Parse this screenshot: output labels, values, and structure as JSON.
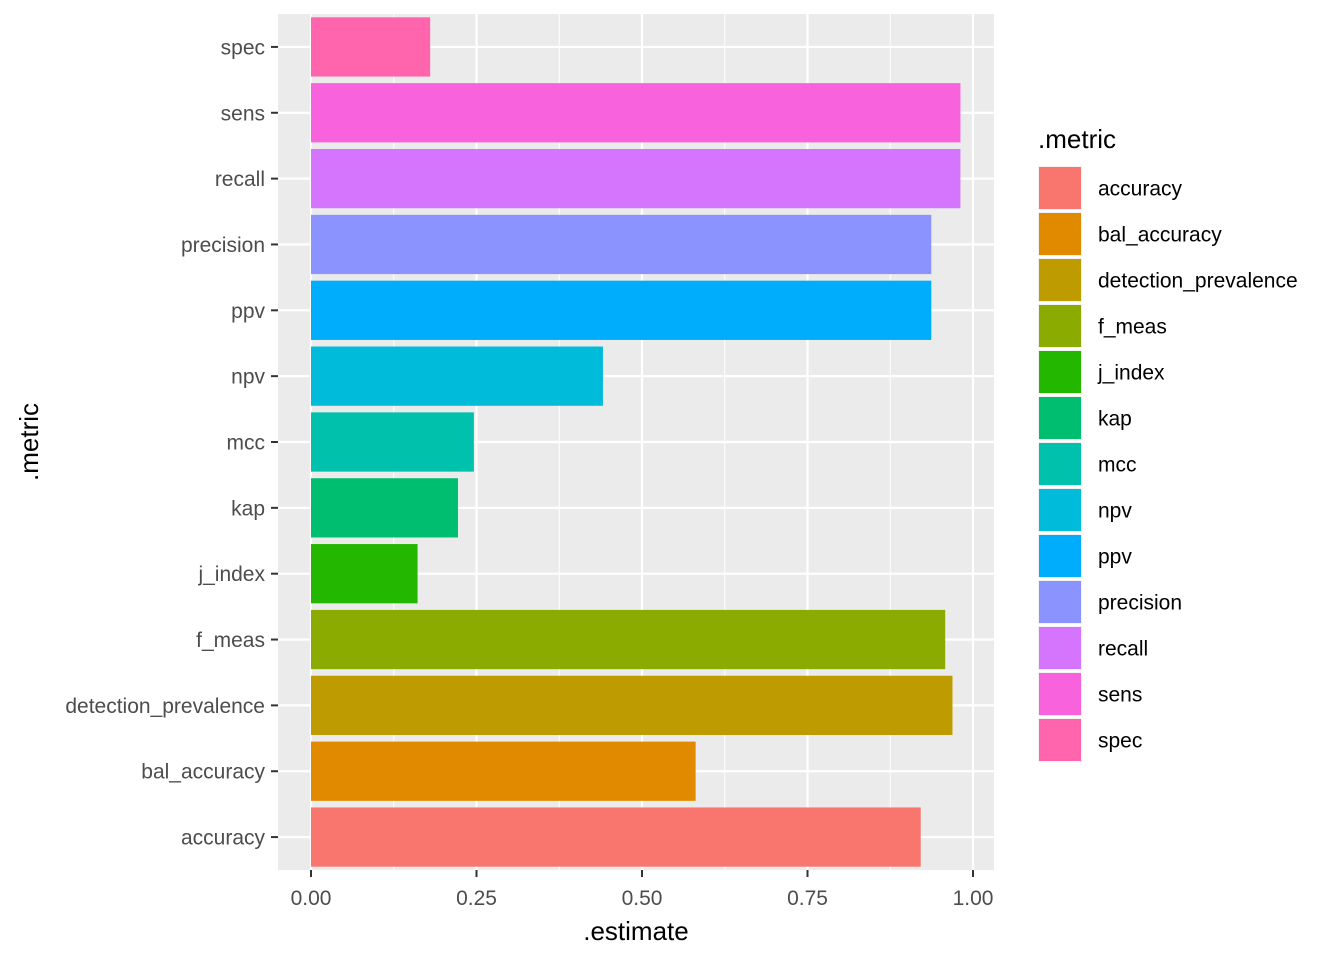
{
  "chart_data": {
    "type": "bar",
    "orientation": "horizontal",
    "xlabel": ".estimate",
    "ylabel": ".metric",
    "xlim": [
      -0.05,
      1.03
    ],
    "x_ticks": [
      0,
      0.25,
      0.5,
      0.75,
      1
    ],
    "x_tick_labels": [
      "0.00",
      "0.25",
      "0.50",
      "0.75",
      "1.00"
    ],
    "grid": true,
    "legend_placement": "right",
    "legend_title": ".metric",
    "categories": [
      "accuracy",
      "bal_accuracy",
      "detection_prevalence",
      "f_meas",
      "j_index",
      "kap",
      "mcc",
      "npv",
      "ppv",
      "precision",
      "recall",
      "sens",
      "spec"
    ],
    "values": [
      0.921,
      0.581,
      0.969,
      0.958,
      0.161,
      0.222,
      0.246,
      0.441,
      0.937,
      0.937,
      0.981,
      0.981,
      0.18
    ],
    "colors": [
      "#F8766D",
      "#E18A00",
      "#BE9C00",
      "#8CAB00",
      "#24B700",
      "#00BE70",
      "#00C1AB",
      "#00BBDA",
      "#00ACFC",
      "#8B93FF",
      "#D575FE",
      "#F962DD",
      "#FF65AC"
    ],
    "legend_entries": [
      "accuracy",
      "bal_accuracy",
      "detection_prevalence",
      "f_meas",
      "j_index",
      "kap",
      "mcc",
      "npv",
      "ppv",
      "precision",
      "recall",
      "sens",
      "spec"
    ]
  }
}
